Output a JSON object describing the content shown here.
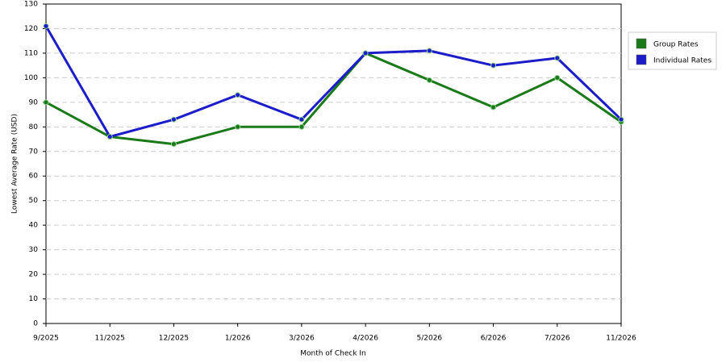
{
  "chart_data": {
    "type": "line",
    "x_label": "Month of Check In",
    "y_label": "Lowest Average Rate (USD)",
    "categories": [
      "9/2025",
      "11/2025",
      "12/2025",
      "1/2026",
      "3/2026",
      "4/2026",
      "5/2026",
      "6/2026",
      "7/2026",
      "11/2026"
    ],
    "series": [
      {
        "name": "Group Rates",
        "color": "#1a7a1a",
        "values": [
          90,
          76,
          73,
          80,
          80,
          110,
          99,
          88,
          100,
          82
        ]
      },
      {
        "name": "Individual Rates",
        "color": "#1c1cc8",
        "values": [
          121,
          76,
          83,
          93,
          83,
          110,
          111,
          105,
          108,
          83
        ]
      }
    ],
    "ylim": [
      0,
      130
    ],
    "yticks": [
      0,
      10,
      20,
      30,
      40,
      50,
      60,
      70,
      80,
      90,
      100,
      110,
      120,
      130
    ],
    "grid": true,
    "legend": "right"
  }
}
